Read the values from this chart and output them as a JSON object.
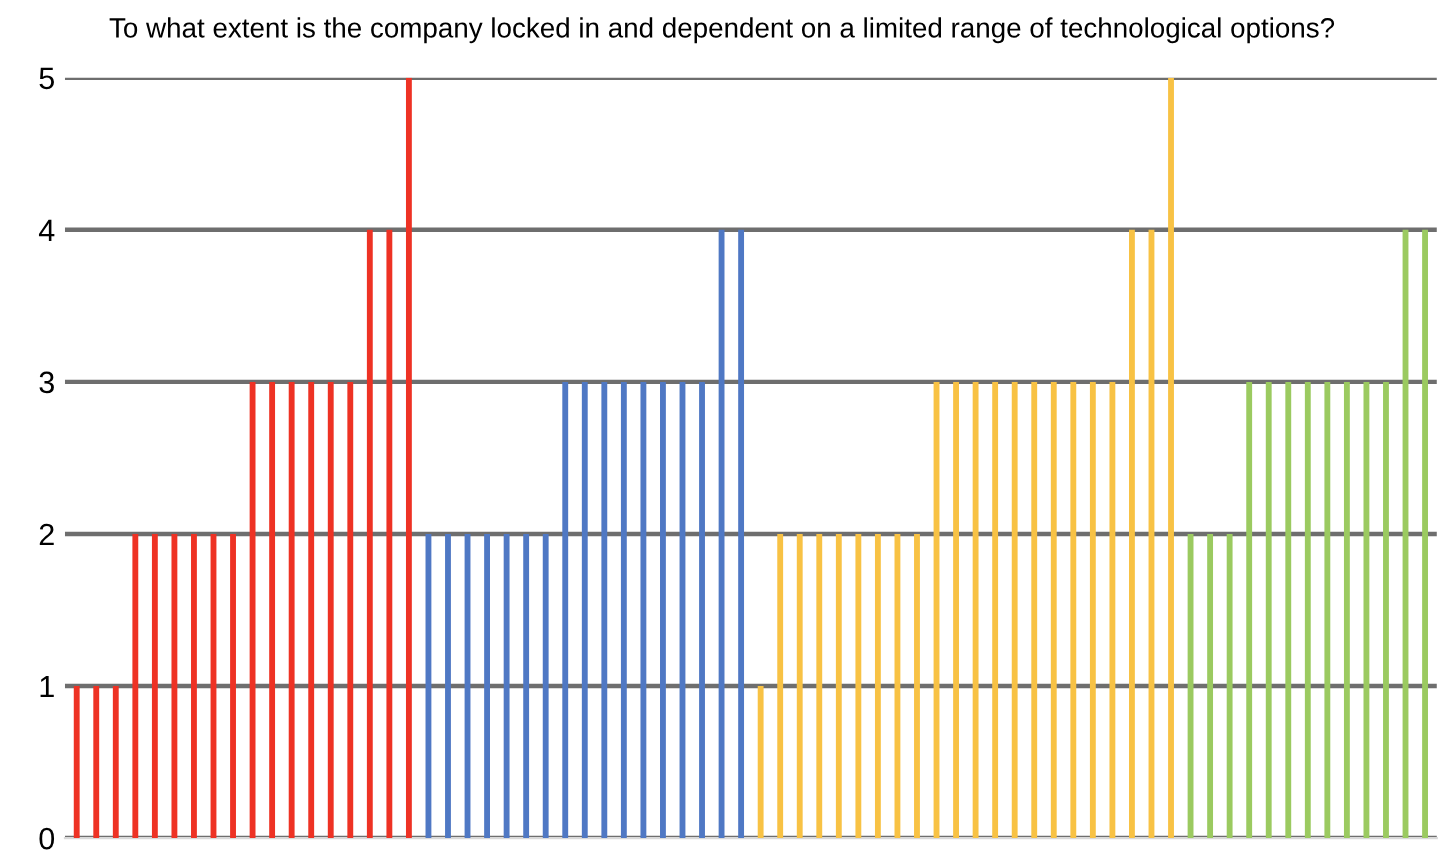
{
  "chart_data": {
    "type": "bar",
    "title": "To what extent is the company locked in and dependent on a limited range of technological options?",
    "categories": [
      null,
      null,
      null,
      null,
      null,
      null,
      null,
      null,
      null,
      null,
      null,
      null,
      null,
      null,
      null,
      null,
      null,
      null,
      null,
      null,
      null,
      null,
      null,
      null,
      null,
      null,
      null,
      null,
      null,
      null,
      null,
      null,
      null,
      null,
      null,
      null,
      null,
      null,
      null,
      null,
      null,
      null,
      null,
      null,
      null,
      null,
      null,
      null,
      null,
      null,
      null,
      null,
      null,
      null,
      null,
      null,
      null,
      null,
      null,
      null,
      null,
      null,
      null,
      null,
      null,
      null,
      null,
      null,
      null,
      null
    ],
    "values": [
      1,
      1,
      1,
      2,
      2,
      2,
      2,
      2,
      2,
      3,
      3,
      3,
      3,
      3,
      3,
      4,
      4,
      5,
      2,
      2,
      2,
      2,
      2,
      2,
      2,
      3,
      3,
      3,
      3,
      3,
      3,
      3,
      3,
      4,
      4,
      1,
      2,
      2,
      2,
      2,
      2,
      2,
      2,
      2,
      3,
      3,
      3,
      3,
      3,
      3,
      3,
      3,
      3,
      3,
      4,
      4,
      5,
      2,
      2,
      2,
      3,
      3,
      3,
      3,
      3,
      3,
      3,
      3,
      4,
      4
    ],
    "colors": [
      "#ee3224",
      "#ee3224",
      "#ee3224",
      "#ee3224",
      "#ee3224",
      "#ee3224",
      "#ee3224",
      "#ee3224",
      "#ee3224",
      "#ee3224",
      "#ee3224",
      "#ee3224",
      "#ee3224",
      "#ee3224",
      "#ee3224",
      "#ee3224",
      "#ee3224",
      "#ee3224",
      "#4f78c4",
      "#4f78c4",
      "#4f78c4",
      "#4f78c4",
      "#4f78c4",
      "#4f78c4",
      "#4f78c4",
      "#4f78c4",
      "#4f78c4",
      "#4f78c4",
      "#4f78c4",
      "#4f78c4",
      "#4f78c4",
      "#4f78c4",
      "#4f78c4",
      "#4f78c4",
      "#4f78c4",
      "#f8c244",
      "#f8c244",
      "#f8c244",
      "#f8c244",
      "#f8c244",
      "#f8c244",
      "#f8c244",
      "#f8c244",
      "#f8c244",
      "#f8c244",
      "#f8c244",
      "#f8c244",
      "#f8c244",
      "#f8c244",
      "#f8c244",
      "#f8c244",
      "#f8c244",
      "#f8c244",
      "#f8c244",
      "#f8c244",
      "#f8c244",
      "#f8c244",
      "#9bca60",
      "#9bca60",
      "#9bca60",
      "#9bca60",
      "#9bca60",
      "#9bca60",
      "#9bca60",
      "#9bca60",
      "#9bca60",
      "#9bca60",
      "#9bca60",
      "#9bca60",
      "#9bca60"
    ],
    "ylim": [
      0,
      5
    ],
    "yticks": [
      0,
      1,
      2,
      3,
      4,
      5
    ],
    "grid": "y"
  }
}
